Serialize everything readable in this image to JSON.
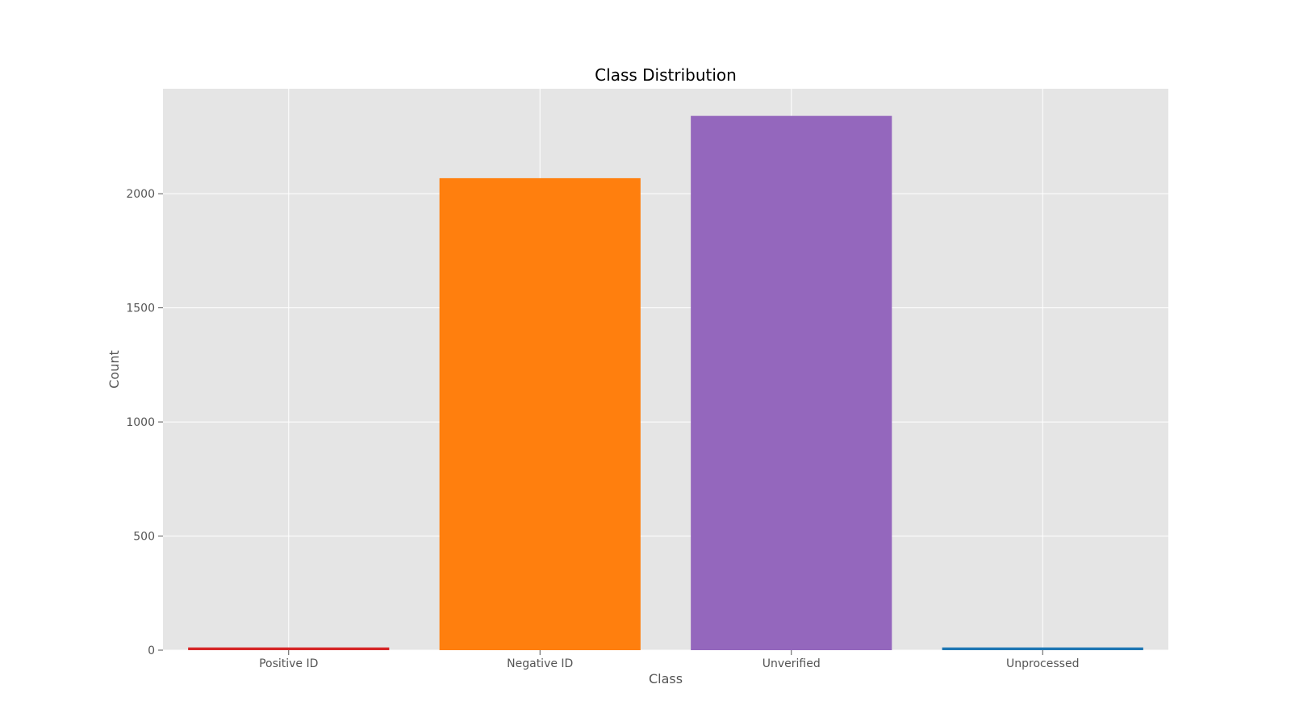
{
  "colors": {
    "background": "#ffffff",
    "plot_background": "#e5e5e5",
    "grid": "#ffffff",
    "tick_text": "#555555",
    "title_text": "#000000",
    "tick_mark": "#555555"
  },
  "chart_data": {
    "type": "bar",
    "title": "Class Distribution",
    "xlabel": "Class",
    "ylabel": "Count",
    "categories": [
      "Positive ID",
      "Negative ID",
      "Unverified",
      "Unprocessed"
    ],
    "values": [
      12,
      2068,
      2341,
      12
    ],
    "bar_colors": [
      "#d62728",
      "#ff7f0e",
      "#9467bd",
      "#1f77b4"
    ],
    "ylim": [
      0,
      2460
    ],
    "yticks": [
      0,
      500,
      1000,
      1500,
      2000
    ],
    "grid": true,
    "legend": "none"
  }
}
